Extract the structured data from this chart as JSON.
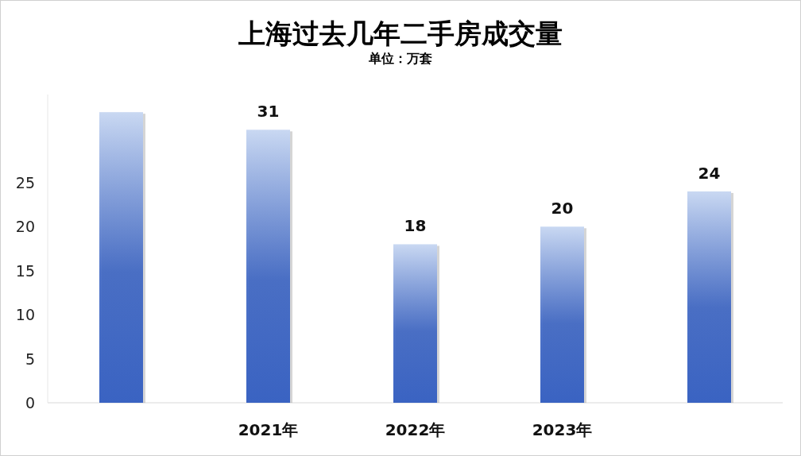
{
  "chart_data": {
    "type": "bar",
    "title": "上海过去几年二手房成交量",
    "subtitle": "单位：万套",
    "categories": [
      null,
      "2021年",
      "2022年",
      "2023年",
      null
    ],
    "values": [
      33,
      31,
      18,
      20,
      24
    ],
    "value_labels": [
      null,
      "31",
      "18",
      "20",
      "24"
    ],
    "color": "#3a63c2",
    "ylim": [
      0,
      35
    ],
    "yticks": [
      0,
      5,
      10,
      15,
      20,
      25
    ]
  }
}
